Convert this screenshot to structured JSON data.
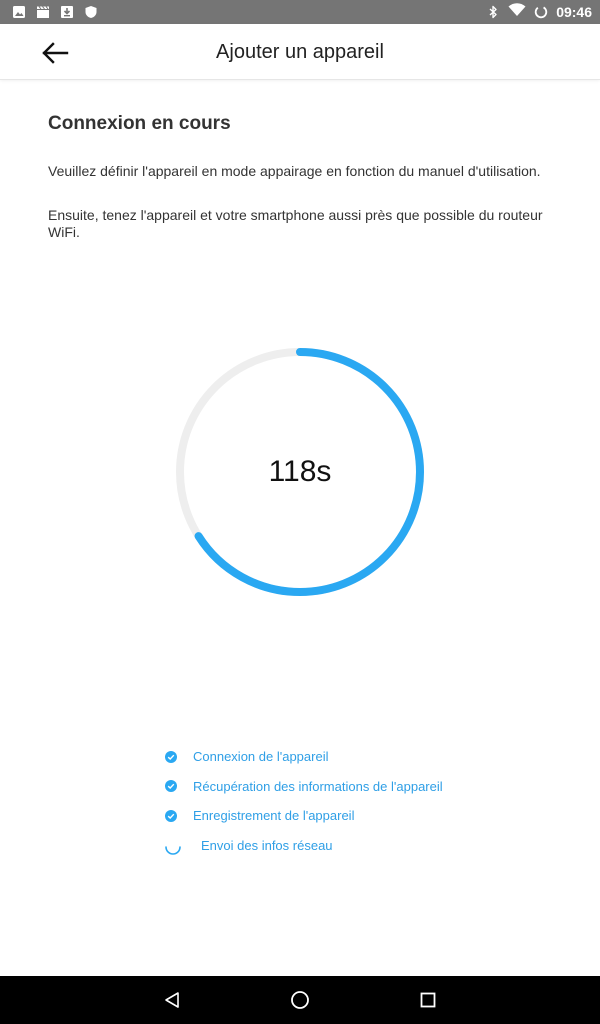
{
  "status_bar": {
    "time": "09:46",
    "left_icons": [
      "image-icon",
      "clapperboard-icon",
      "download-icon",
      "shield-icon"
    ],
    "right_icons": [
      "bluetooth-icon",
      "wifi-icon",
      "battery-icon"
    ]
  },
  "app_bar": {
    "back_icon": "arrow-left-icon",
    "title": "Ajouter un appareil"
  },
  "main": {
    "section_title": "Connexion en cours",
    "instruction_1": "Veuillez définir l'appareil en mode appairage en fonction du manuel d'utilisation.",
    "instruction_2": "Ensuite, tenez l'appareil et votre smartphone aussi près que possible du routeur WiFi.",
    "countdown": {
      "label": "118s",
      "remaining_seconds": 118,
      "progress_fraction": 0.66
    },
    "steps": [
      {
        "label": "Connexion de l'appareil",
        "status": "done"
      },
      {
        "label": "Récupération des informations de l'appareil",
        "status": "done"
      },
      {
        "label": "Enregistrement de l'appareil",
        "status": "done"
      },
      {
        "label": "Envoi des infos réseau",
        "status": "in_progress"
      }
    ]
  },
  "colors": {
    "accent": "#2aa8f2",
    "ring_track": "#eeeeee",
    "step_text": "#2f9fe6",
    "status_bar": "#757575",
    "nav_bar": "#000000"
  },
  "nav_bar": {
    "icons": [
      "nav-back-icon",
      "nav-home-icon",
      "nav-recents-icon"
    ]
  }
}
